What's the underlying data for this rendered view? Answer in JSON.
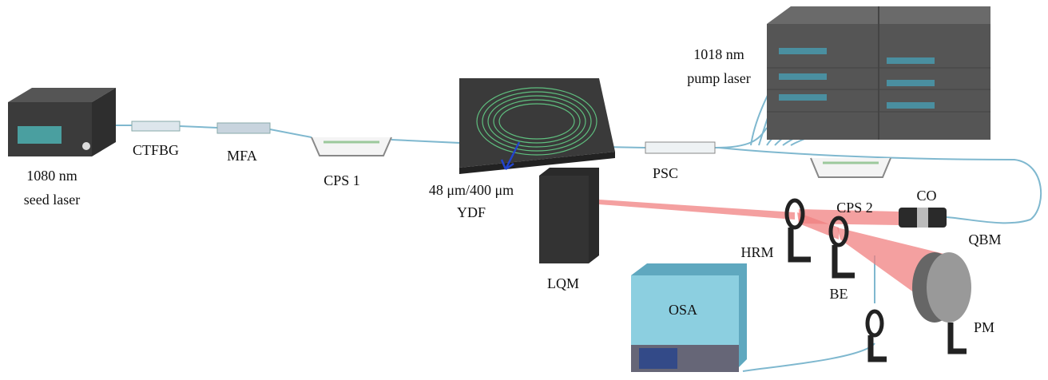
{
  "labels": {
    "seed_laser": [
      "1080 nm",
      "seed laser"
    ],
    "ctfbg": "CTFBG",
    "mfa": "MFA",
    "cps1": "CPS 1",
    "ydf": [
      "48 μm/400 μm",
      "YDF"
    ],
    "lqm": "LQM",
    "psc": "PSC",
    "pump_laser": [
      "1018 nm",
      "pump laser"
    ],
    "cps2": "CPS 2",
    "co": "CO",
    "qbm": "QBM",
    "hrm": "HRM",
    "be": "BE",
    "osa": "OSA",
    "pm": "PM"
  }
}
